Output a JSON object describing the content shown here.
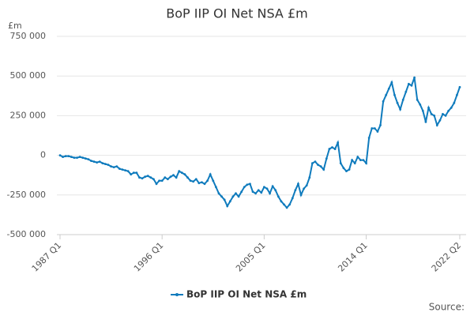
{
  "chart_data": {
    "type": "line",
    "title": "BoP IIP OI Net NSA £m",
    "y_label": "£m",
    "source": "Source:",
    "categories": [
      "1987 Q1",
      null,
      null,
      null,
      null,
      null,
      null,
      null,
      null,
      null,
      null,
      null,
      null,
      null,
      null,
      null,
      null,
      null,
      null,
      null,
      null,
      null,
      null,
      null,
      null,
      null,
      null,
      null,
      null,
      null,
      null,
      null,
      null,
      null,
      null,
      null,
      "1996 Q1",
      null,
      null,
      null,
      null,
      null,
      null,
      null,
      null,
      null,
      null,
      null,
      null,
      null,
      null,
      null,
      null,
      null,
      null,
      null,
      null,
      null,
      null,
      null,
      null,
      null,
      null,
      null,
      null,
      null,
      null,
      null,
      null,
      null,
      null,
      null,
      "2005 Q1",
      null,
      null,
      null,
      null,
      null,
      null,
      null,
      null,
      null,
      null,
      null,
      null,
      null,
      null,
      null,
      null,
      null,
      null,
      null,
      null,
      null,
      null,
      null,
      null,
      null,
      null,
      null,
      null,
      null,
      null,
      null,
      null,
      null,
      null,
      null,
      "2014 Q1",
      null,
      null,
      null,
      null,
      null,
      null,
      null,
      null,
      null,
      null,
      null,
      null,
      null,
      null,
      null,
      null,
      null,
      null,
      null,
      null,
      null,
      null,
      null,
      null,
      null,
      null,
      null,
      null,
      null,
      null,
      null,
      null,
      "2022 Q2"
    ],
    "series": [
      {
        "name": "BoP IIP OI Net NSA £m",
        "color": "#0f7bbd",
        "values": [
          0,
          -10000,
          -5000,
          -5000,
          -10000,
          -15000,
          -15000,
          -10000,
          -15000,
          -20000,
          -25000,
          -35000,
          -40000,
          -45000,
          -40000,
          -50000,
          -55000,
          -60000,
          -70000,
          -75000,
          -70000,
          -85000,
          -90000,
          -95000,
          -100000,
          -120000,
          -110000,
          -110000,
          -140000,
          -145000,
          -135000,
          -130000,
          -140000,
          -150000,
          -180000,
          -160000,
          -160000,
          -140000,
          -150000,
          -135000,
          -125000,
          -140000,
          -100000,
          -110000,
          -120000,
          -140000,
          -160000,
          -165000,
          -150000,
          -175000,
          -170000,
          -180000,
          -160000,
          -120000,
          -160000,
          -200000,
          -240000,
          -260000,
          -280000,
          -320000,
          -290000,
          -260000,
          -240000,
          -260000,
          -230000,
          -200000,
          -185000,
          -180000,
          -230000,
          -240000,
          -220000,
          -235000,
          -200000,
          -210000,
          -240000,
          -195000,
          -220000,
          -260000,
          -290000,
          -310000,
          -330000,
          -310000,
          -270000,
          -220000,
          -180000,
          -250000,
          -210000,
          -190000,
          -140000,
          -50000,
          -40000,
          -60000,
          -70000,
          -90000,
          -20000,
          40000,
          50000,
          40000,
          80000,
          -50000,
          -80000,
          -100000,
          -90000,
          -30000,
          -50000,
          -10000,
          -30000,
          -30000,
          -50000,
          110000,
          170000,
          170000,
          150000,
          190000,
          340000,
          380000,
          420000,
          460000,
          380000,
          330000,
          290000,
          350000,
          400000,
          450000,
          440000,
          490000,
          350000,
          320000,
          280000,
          210000,
          300000,
          260000,
          250000,
          190000,
          220000,
          260000,
          250000,
          280000,
          300000,
          330000,
          380000,
          430000
        ]
      }
    ],
    "ylim": [
      -500000,
      750000
    ],
    "yticks": [
      {
        "value": -500000,
        "label": "-500 000"
      },
      {
        "value": -250000,
        "label": "-250 000"
      },
      0,
      {
        "value": 250000,
        "label": "250 000"
      },
      {
        "value": 500000,
        "label": "500 000"
      },
      {
        "value": 750000,
        "label": "750 000"
      }
    ],
    "grid": true
  }
}
